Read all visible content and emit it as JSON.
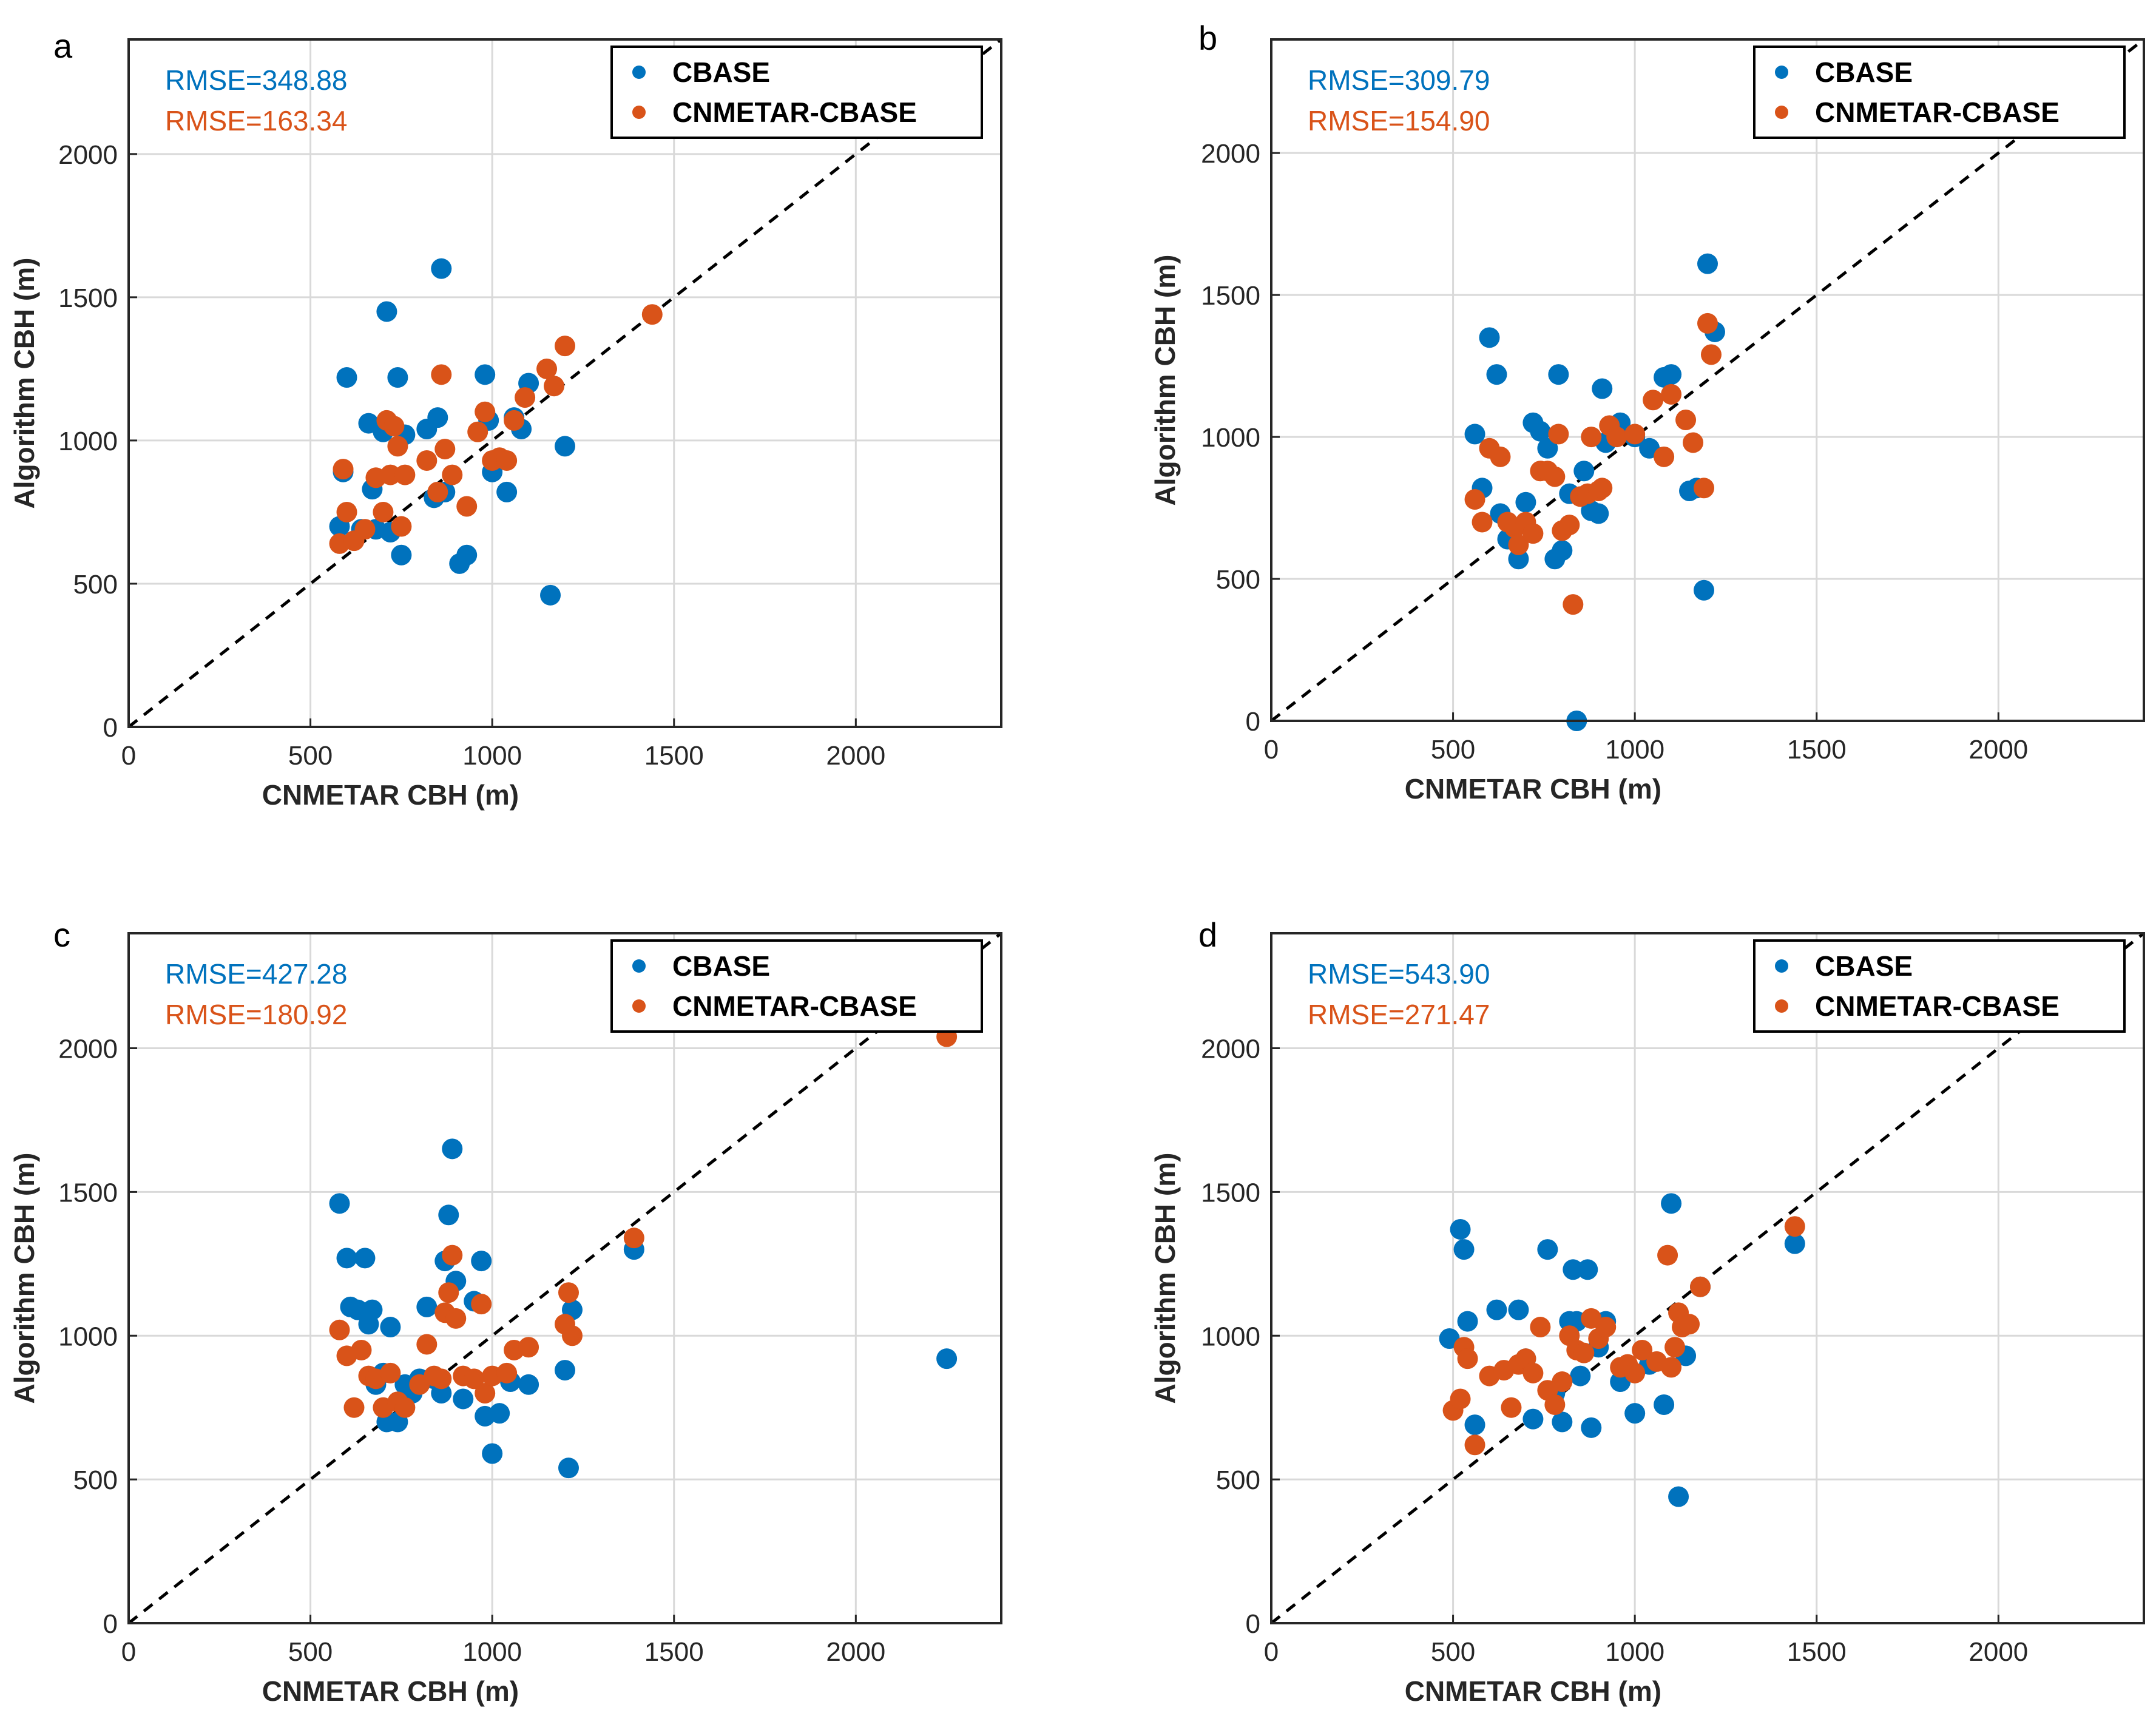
{
  "colors": {
    "cbase": "#0072BD",
    "cnmetar_cbase": "#D95319",
    "grid": "#d9d9d9",
    "axis": "#262626"
  },
  "shared": {
    "xlabel": "CNMETAR CBH (m)",
    "ylabel": "Algorithm CBH (m)",
    "xlim": [
      0,
      2400
    ],
    "ylim": [
      0,
      2400
    ],
    "ticks": [
      0,
      500,
      1000,
      1500,
      2000
    ],
    "tick_labels": [
      "0",
      "500",
      "1000",
      "1500",
      "2000"
    ],
    "legend": [
      "CBASE",
      "CNMETAR-CBASE"
    ],
    "reference_line": "y = x (dashed)"
  },
  "chart_data": [
    {
      "type": "scatter",
      "panel": "a",
      "rmse_cbase": "RMSE=348.88",
      "rmse_cnmetar": "RMSE=163.34",
      "series": [
        {
          "name": "CBASE",
          "x": [
            580,
            590,
            600,
            640,
            660,
            670,
            680,
            700,
            710,
            720,
            740,
            750,
            760,
            820,
            840,
            850,
            860,
            870,
            910,
            930,
            980,
            990,
            1000,
            1040,
            1060,
            1080,
            1100,
            1160,
            1200
          ],
          "y": [
            700,
            890,
            1220,
            690,
            1060,
            830,
            690,
            1030,
            1450,
            680,
            1220,
            600,
            1020,
            1040,
            800,
            1080,
            1600,
            820,
            570,
            600,
            1230,
            1070,
            890,
            820,
            1080,
            1040,
            1200,
            460,
            980
          ]
        },
        {
          "name": "CNMETAR-CBASE",
          "x": [
            580,
            590,
            600,
            620,
            650,
            680,
            700,
            710,
            720,
            730,
            740,
            750,
            760,
            820,
            850,
            860,
            870,
            890,
            930,
            960,
            980,
            1000,
            1020,
            1040,
            1060,
            1090,
            1150,
            1170,
            1200,
            1440
          ],
          "y": [
            640,
            900,
            750,
            650,
            690,
            870,
            750,
            1070,
            880,
            1050,
            980,
            700,
            880,
            930,
            820,
            1230,
            970,
            880,
            770,
            1030,
            1100,
            930,
            940,
            930,
            1070,
            1150,
            1250,
            1190,
            1330,
            1440
          ]
        }
      ]
    },
    {
      "type": "scatter",
      "panel": "b",
      "rmse_cbase": "RMSE=309.79",
      "rmse_cnmetar": "RMSE=154.90",
      "series": [
        {
          "name": "CBASE",
          "x": [
            560,
            580,
            600,
            620,
            630,
            650,
            680,
            700,
            720,
            740,
            760,
            780,
            790,
            800,
            820,
            840,
            860,
            880,
            900,
            910,
            920,
            960,
            1000,
            1040,
            1080,
            1100,
            1150,
            1170,
            1190,
            1200,
            1220
          ],
          "y": [
            1010,
            820,
            1350,
            1220,
            730,
            640,
            570,
            770,
            1050,
            1020,
            960,
            570,
            1220,
            600,
            800,
            0,
            880,
            740,
            730,
            1170,
            980,
            1050,
            1000,
            960,
            1210,
            1220,
            810,
            820,
            460,
            1610,
            1370
          ]
        },
        {
          "name": "CNMETAR-CBASE",
          "x": [
            560,
            580,
            600,
            630,
            650,
            670,
            680,
            700,
            720,
            740,
            760,
            780,
            790,
            800,
            820,
            830,
            850,
            870,
            880,
            900,
            910,
            930,
            950,
            1000,
            1050,
            1080,
            1100,
            1140,
            1160,
            1190,
            1200,
            1210
          ],
          "y": [
            780,
            700,
            960,
            930,
            700,
            680,
            620,
            700,
            660,
            880,
            880,
            860,
            1010,
            670,
            690,
            410,
            790,
            800,
            1000,
            810,
            820,
            1040,
            1000,
            1010,
            1130,
            930,
            1150,
            1060,
            980,
            820,
            1400,
            1290
          ]
        }
      ]
    },
    {
      "type": "scatter",
      "panel": "c",
      "rmse_cbase": "RMSE=427.28",
      "rmse_cnmetar": "RMSE=180.92",
      "series": [
        {
          "name": "CBASE",
          "x": [
            580,
            600,
            610,
            630,
            650,
            660,
            670,
            680,
            700,
            710,
            720,
            740,
            760,
            780,
            800,
            820,
            840,
            860,
            870,
            880,
            890,
            900,
            920,
            950,
            970,
            980,
            1000,
            1020,
            1050,
            1100,
            1200,
            1210,
            1220,
            1390,
            2250
          ],
          "y": [
            1460,
            1270,
            1100,
            1090,
            1270,
            1040,
            1090,
            830,
            870,
            700,
            1030,
            700,
            830,
            800,
            850,
            1100,
            850,
            800,
            1260,
            1420,
            1650,
            1190,
            780,
            1120,
            1260,
            720,
            590,
            730,
            840,
            830,
            880,
            540,
            1090,
            1300,
            920
          ]
        },
        {
          "name": "CNMETAR-CBASE",
          "x": [
            580,
            600,
            620,
            640,
            660,
            680,
            700,
            720,
            740,
            760,
            800,
            820,
            840,
            860,
            870,
            880,
            890,
            900,
            920,
            950,
            970,
            980,
            1000,
            1040,
            1060,
            1100,
            1200,
            1210,
            1220,
            1390,
            2250
          ],
          "y": [
            1020,
            930,
            750,
            950,
            860,
            850,
            750,
            870,
            770,
            750,
            830,
            970,
            860,
            850,
            1080,
            1150,
            1280,
            1060,
            860,
            850,
            1110,
            800,
            860,
            870,
            950,
            960,
            1040,
            1150,
            1000,
            1340,
            2040
          ]
        }
      ]
    },
    {
      "type": "scatter",
      "panel": "d",
      "rmse_cbase": "RMSE=543.90",
      "rmse_cnmetar": "RMSE=271.47",
      "series": [
        {
          "name": "CBASE",
          "x": [
            490,
            520,
            530,
            540,
            560,
            620,
            680,
            700,
            720,
            760,
            780,
            800,
            820,
            830,
            840,
            850,
            870,
            880,
            900,
            920,
            960,
            1000,
            1040,
            1080,
            1100,
            1120,
            1140,
            1180,
            1440
          ],
          "y": [
            990,
            1370,
            1300,
            1050,
            690,
            1090,
            1090,
            920,
            710,
            1300,
            800,
            700,
            1050,
            1230,
            1050,
            860,
            1230,
            680,
            960,
            1050,
            840,
            730,
            900,
            760,
            1460,
            440,
            930,
            1170,
            1320
          ]
        },
        {
          "name": "CNMETAR-CBASE",
          "x": [
            500,
            520,
            530,
            540,
            560,
            600,
            640,
            660,
            680,
            700,
            720,
            740,
            760,
            780,
            800,
            820,
            840,
            860,
            880,
            900,
            920,
            960,
            980,
            1000,
            1020,
            1060,
            1090,
            1100,
            1110,
            1120,
            1130,
            1150,
            1180,
            1440
          ],
          "y": [
            740,
            780,
            960,
            920,
            620,
            860,
            880,
            750,
            900,
            920,
            870,
            1030,
            810,
            760,
            840,
            1000,
            950,
            940,
            1060,
            990,
            1030,
            890,
            900,
            870,
            950,
            910,
            1280,
            890,
            960,
            1080,
            1030,
            1040,
            1170,
            1380
          ]
        }
      ]
    }
  ]
}
